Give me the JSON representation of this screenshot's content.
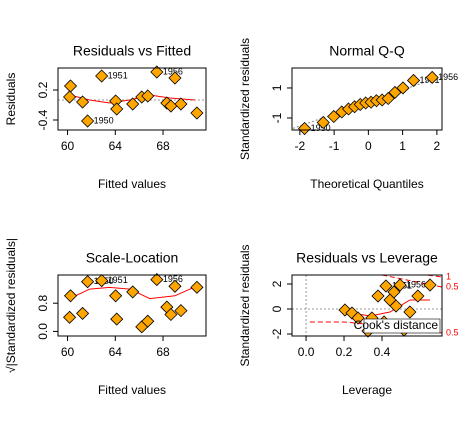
{
  "chart_data": [
    {
      "type": "scatter",
      "title": "Residuals vs Fitted",
      "xlabel": "Fitted values",
      "ylabel": "Residuals",
      "x": [
        60.25,
        60.17,
        61.26,
        61.68,
        62.86,
        64.03,
        64.12,
        65.46,
        66.22,
        66.72,
        67.48,
        68.32,
        68.66,
        69.0,
        69.5,
        70.84
      ],
      "y": [
        0.28,
        0.06,
        -0.04,
        -0.42,
        0.48,
        -0.02,
        -0.18,
        -0.08,
        0.06,
        0.08,
        0.56,
        -0.06,
        -0.12,
        0.44,
        -0.08,
        -0.26
      ],
      "point_labels": [
        null,
        null,
        null,
        "1950",
        "1951",
        null,
        null,
        null,
        null,
        null,
        "1956",
        null,
        null,
        null,
        null,
        null
      ],
      "color": "#ffa500",
      "xlim": [
        59.2,
        71.6
      ],
      "ylim": [
        -0.6,
        0.64
      ],
      "xticks": [
        60,
        64,
        68
      ],
      "yticks": [
        -0.4,
        0.2
      ],
      "hline": 0,
      "lines": [
        {
          "x": [
            60.17,
            61.85,
            63.53,
            65.21,
            66.89,
            68.57,
            70.67
          ],
          "y": [
            0.1,
            0.0,
            -0.06,
            0.0,
            0.1,
            0.04,
            0.0
          ],
          "color": "#ff0000",
          "dash": "solid"
        }
      ]
    },
    {
      "type": "scatter",
      "title": "Normal Q-Q",
      "xlabel": "Theoretical Quantiles",
      "ylabel": "Standardized residuals",
      "x": [
        -1.863,
        -1.318,
        -1.01,
        -0.776,
        -0.579,
        -0.402,
        -0.237,
        -0.078,
        0.078,
        0.237,
        0.402,
        0.579,
        0.776,
        1.01,
        1.318,
        1.863
      ],
      "y": [
        -1.7,
        -1.3,
        -0.9,
        -0.6,
        -0.4,
        -0.25,
        -0.1,
        0.0,
        0.05,
        0.15,
        0.2,
        0.3,
        0.7,
        1.0,
        1.5,
        1.7
      ],
      "point_labels": [
        "1950",
        null,
        null,
        null,
        null,
        null,
        null,
        null,
        null,
        null,
        null,
        null,
        null,
        null,
        "1951",
        "1956"
      ],
      "color": "#ffa500",
      "xlim": [
        -2.23,
        2.15
      ],
      "ylim": [
        -1.8,
        2.33
      ],
      "xticks": [
        -2,
        -1,
        0,
        1,
        2
      ],
      "yticks": [
        -1,
        1
      ],
      "lines": [
        {
          "x": [
            -2.2,
            2.1
          ],
          "y": [
            -1.69,
            1.75
          ],
          "color": "#888888",
          "dash": "dotted"
        }
      ]
    },
    {
      "type": "scatter",
      "title": "Scale-Location",
      "xlabel": "Fitted values",
      "ylabel": "√|Standardized residuals|",
      "x": [
        60.25,
        60.17,
        61.26,
        61.68,
        62.86,
        64.03,
        64.12,
        65.46,
        66.22,
        66.72,
        67.48,
        68.32,
        68.66,
        69.0,
        69.5,
        70.84
      ],
      "y": [
        1.01,
        0.4,
        0.51,
        1.41,
        1.44,
        1.01,
        0.35,
        1.12,
        0.13,
        0.29,
        1.47,
        0.69,
        0.48,
        1.28,
        0.59,
        1.25
      ],
      "point_labels": [
        null,
        null,
        null,
        "1950",
        "1951",
        null,
        null,
        null,
        null,
        null,
        "1956",
        null,
        null,
        null,
        null,
        null
      ],
      "color": "#ffa500",
      "xlim": [
        59.2,
        71.6
      ],
      "ylim": [
        -0.13,
        1.6
      ],
      "xticks": [
        60,
        64,
        68
      ],
      "yticks": [
        {
          "value": 0,
          "label": "0.0"
        },
        0.8
      ],
      "lines": [
        {
          "x": [
            60.17,
            61.85,
            63.53,
            65.21,
            66.89,
            69.0,
            71.1
          ],
          "y": [
            0.93,
            1.2,
            1.25,
            1.2,
            0.93,
            1.01,
            1.33
          ],
          "color": "#ff0000",
          "dash": "solid"
        }
      ]
    },
    {
      "type": "scatter",
      "title": "Residuals vs Leverage",
      "xlabel": "Leverage",
      "ylabel": "Standardized residuals",
      "x": [
        0.205,
        0.242,
        0.274,
        0.326,
        0.347,
        0.379,
        0.411,
        0.421,
        0.442,
        0.463,
        0.474,
        0.495,
        0.516,
        0.547,
        0.589,
        0.653
      ],
      "y": [
        -0.08,
        -0.32,
        -0.72,
        -1.76,
        -0.72,
        1.04,
        -1.04,
        1.84,
        0.72,
        1.36,
        0.24,
        1.92,
        -1.68,
        -0.24,
        1.04,
        1.92
      ],
      "point_labels": [
        null,
        null,
        null,
        null,
        null,
        null,
        null,
        "1951",
        null,
        null,
        null,
        "1956",
        "1962",
        null,
        null,
        null
      ],
      "color": "#ffa500",
      "xlim": [
        -0.074,
        0.716
      ],
      "ylim": [
        -2.16,
        2.72
      ],
      "xticks": [
        {
          "value": 0,
          "label": "0.0"
        },
        0.2,
        0.4
      ],
      "yticks": [
        -2,
        0,
        2
      ],
      "hline": 0,
      "vline": 0,
      "legend_text": "Cook's distance",
      "lines": [
        {
          "x": [
            0.205,
            0.337,
            0.442,
            0.547,
            0.653
          ],
          "y": [
            -0.24,
            -0.56,
            -0.24,
            0.72,
            0.72
          ],
          "color": "#ff0000",
          "dash": "solid"
        },
        {
          "x": [
            0.02,
            0.2,
            0.45,
            0.716
          ],
          "y": [
            -1.04,
            -1.04,
            -1.4,
            -1.92
          ],
          "color": "#ff0000",
          "dash": "dashed",
          "label": "0.5"
        },
        {
          "x": [
            0.4,
            0.716
          ],
          "y": [
            2.72,
            1.76
          ],
          "color": "#ff0000",
          "dash": "dashed",
          "label": "0.5"
        },
        {
          "x": [
            0.6,
            0.716
          ],
          "y": [
            2.8,
            2.56
          ],
          "color": "#ff0000",
          "dash": "dashed",
          "label": "1"
        }
      ]
    }
  ]
}
